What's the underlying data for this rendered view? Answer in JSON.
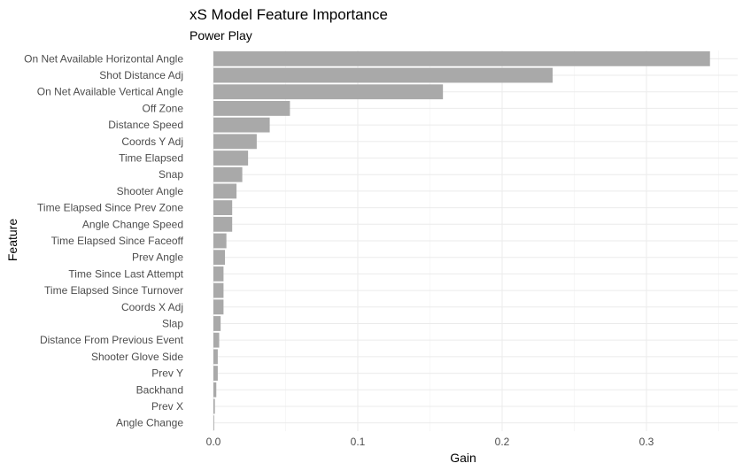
{
  "chart_data": {
    "type": "bar",
    "orientation": "horizontal",
    "title": "xS Model Feature Importance",
    "subtitle": "Power Play",
    "xlabel": "Gain",
    "ylabel": "Feature",
    "xlim": [
      0,
      0.3475
    ],
    "xticks": [
      "0.0",
      "0.1",
      "0.2",
      "0.3"
    ],
    "grid": true,
    "legend": "none",
    "bar_color": "#a9a9a9",
    "categories": [
      "On Net Available Horizontal Angle",
      "Shot Distance Adj",
      "On Net Available Vertical Angle",
      "Off Zone",
      "Distance Speed",
      "Coords Y Adj",
      "Time Elapsed",
      "Snap",
      "Shooter Angle",
      "Time Elapsed Since Prev Zone",
      "Angle Change Speed",
      "Time Elapsed Since Faceoff",
      "Prev Angle",
      "Time Since Last Attempt",
      "Time Elapsed Since Turnover",
      "Coords X Adj",
      "Slap",
      "Distance From Previous Event",
      "Shooter Glove Side",
      "Prev Y",
      "Backhand",
      "Prev X",
      "Angle Change"
    ],
    "values": [
      0.344,
      0.235,
      0.159,
      0.053,
      0.039,
      0.03,
      0.024,
      0.02,
      0.016,
      0.013,
      0.013,
      0.009,
      0.008,
      0.007,
      0.007,
      0.007,
      0.005,
      0.004,
      0.003,
      0.003,
      0.002,
      0.001,
      0.0005
    ]
  }
}
